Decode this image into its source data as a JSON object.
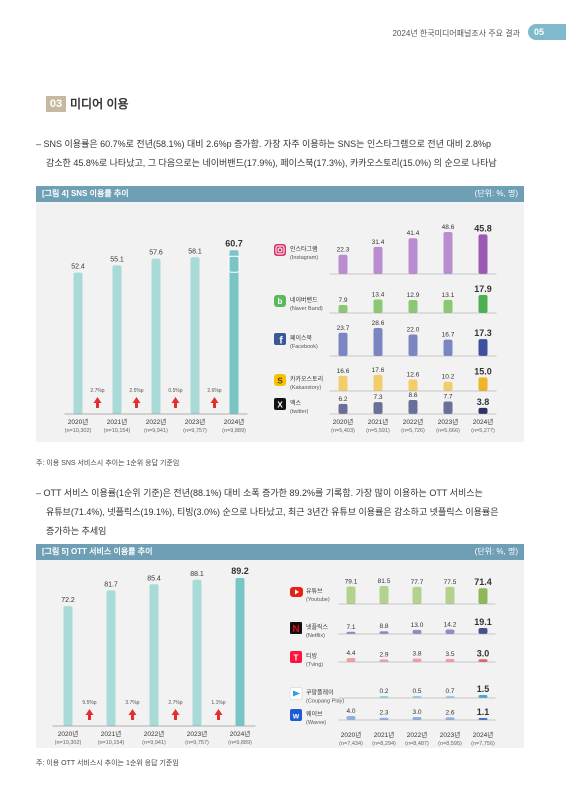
{
  "header": {
    "title": "2024년 한국미디어패널조사 주요 결과",
    "page": "05"
  },
  "section": {
    "number": "03",
    "title": "미디어 이용"
  },
  "para1": {
    "line1": "– SNS 이용률은 60.7%로 전년(58.1%) 대비 2.6%p 증가함. 가장 자주 이용하는 SNS는 인스타그램으로 전년 대비 2.8%p",
    "line2": "감소한 45.8%로 나타났고, 그 다음으로는 네이버밴드(17.9%), 페이스북(17.3%), 카카오스토리(15.0%) 의 순으로 나타남"
  },
  "para2": {
    "line1": "– OTT 서비스 이용률(1순위 기준)은 전년(88.1%) 대비 소폭 증가한 89.2%를 기록함. 가장 많이 이용하는 OTT 서비스는",
    "line2": "유튜브(71.4%), 넷플릭스(19.1%), 티빙(3.0%) 순으로 나타났고, 최근 3년간 유튜브 이용률은 감소하고 넷플릭스 이용률은",
    "line3": "증가하는 추세임"
  },
  "colors": {
    "teal": "#a8dad8",
    "teal_last": "#79c4c4",
    "red_arrow": "#e03030",
    "bar_header": "#6f9fb5"
  },
  "chart_data": [
    {
      "type": "bar",
      "figure_label": "[그림 4]  SNS 이용률 추이",
      "unit": "(단위: %, 명)",
      "categories": [
        "2020년",
        "2021년",
        "2022년",
        "2023년",
        "2024년"
      ],
      "n": [
        "(n=10,302)",
        "(n=10,154)",
        "(n=9,941)",
        "(n=9,757)",
        "(n=9,889)"
      ],
      "values": [
        52.4,
        55.1,
        57.6,
        58.1,
        60.7
      ],
      "changes": [
        "2.7%p",
        "2.5%p",
        "0.5%p",
        "2.6%p"
      ],
      "ylim": [
        0,
        66
      ],
      "icon": "smartphone-icon",
      "platforms": {
        "categories": [
          "2020년",
          "2021년",
          "2022년",
          "2023년",
          "2024년"
        ],
        "n": [
          "(n=5,403)",
          "(n=5,591)",
          "(n=5,726)",
          "(n=5,666)",
          "(n=5,277)"
        ],
        "series": [
          {
            "name": "인스타그램",
            "name_en": "(Instagram)",
            "icon": "instagram-icon",
            "color": "#b98dd0",
            "last_color": "#9b59b6",
            "values": [
              22.3,
              31.4,
              41.4,
              48.6,
              45.8
            ]
          },
          {
            "name": "네이버밴드",
            "name_en": "(Naver Band)",
            "icon": "naver-band-icon",
            "color": "#8cc873",
            "last_color": "#4caf50",
            "values": [
              7.9,
              13.4,
              12.9,
              13.1,
              17.9
            ]
          },
          {
            "name": "페이스북",
            "name_en": "(Facebook)",
            "icon": "facebook-icon",
            "color": "#7a85c2",
            "last_color": "#3f4fa0",
            "values": [
              23.7,
              28.6,
              22.0,
              16.7,
              17.3
            ]
          },
          {
            "name": "카카오스토리",
            "name_en": "(Kakaostory)",
            "icon": "kakaostory-icon",
            "color": "#f2cd6a",
            "last_color": "#f0b429",
            "values": [
              16.6,
              17.6,
              12.6,
              10.2,
              15.0
            ]
          },
          {
            "name": "엑스",
            "name_en": "(twitter)",
            "icon": "x-icon",
            "color": "#6a6f99",
            "last_color": "#2e3266",
            "values": [
              6.2,
              7.3,
              8.6,
              7.7,
              3.8
            ]
          }
        ]
      }
    },
    {
      "type": "bar",
      "figure_label": "[그림 5]  OTT 서비스 이용률 추이",
      "unit": "(단위: %, 명)",
      "categories": [
        "2020년",
        "2021년",
        "2022년",
        "2023년",
        "2024년"
      ],
      "n": [
        "(n=10,302)",
        "(n=10,154)",
        "(n=9,941)",
        "(n=9,757)",
        "(n=9,889)"
      ],
      "values": [
        72.2,
        81.7,
        85.4,
        88.1,
        89.2
      ],
      "changes": [
        "9.5%p",
        "3.7%p",
        "2.7%p",
        "1.1%p"
      ],
      "ylim": [
        0,
        94
      ],
      "platforms": {
        "categories": [
          "2020년",
          "2021년",
          "2022년",
          "2023년",
          "2024년"
        ],
        "n": [
          "(n=7,434)",
          "(n=8,294)",
          "(n=8,487)",
          "(n=8,595)",
          "(n=7,756)"
        ],
        "series": [
          {
            "name": "유튜브",
            "name_en": "(Youtube)",
            "icon": "youtube-icon",
            "color": "#b5d18e",
            "last_color": "#8db85a",
            "values": [
              79.1,
              81.5,
              77.7,
              77.5,
              71.4
            ]
          },
          {
            "name": "넷플릭스",
            "name_en": "(Netflix)",
            "icon": "netflix-icon",
            "color": "#8a8fbf",
            "last_color": "#4a4f8c",
            "values": [
              7.1,
              8.8,
              13.0,
              14.2,
              19.1
            ]
          },
          {
            "name": "티빙",
            "name_en": "(Tving)",
            "icon": "tving-icon",
            "color": "#f2a0a8",
            "last_color": "#e06070",
            "values": [
              4.4,
              2.9,
              3.8,
              3.5,
              3.0
            ]
          },
          {
            "name": "쿠팡플레이",
            "name_en": "(Coupang Play)",
            "icon": "coupang-play-icon",
            "color": "#9ad0e8",
            "last_color": "#4aa8d8",
            "values": [
              null,
              0.2,
              0.5,
              0.7,
              1.5
            ]
          },
          {
            "name": "웨이브",
            "name_en": "(Wavve)",
            "icon": "wavve-icon",
            "color": "#8fb0e0",
            "last_color": "#3a6fc8",
            "values": [
              4.0,
              2.3,
              3.0,
              2.6,
              1.1
            ]
          }
        ]
      }
    }
  ],
  "notes": {
    "fig4": "주: 이용 SNS 서비스시 추이는 1순위 응답 기준임",
    "fig5": "주: 이용 OTT 서비스시 추이는 1순위 응답 기준임"
  }
}
